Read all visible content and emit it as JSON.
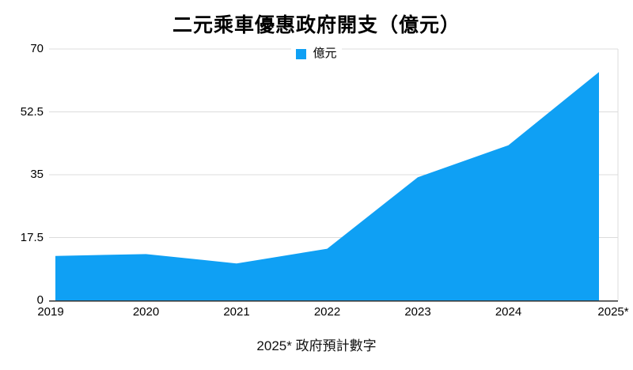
{
  "title": "二元乘車優惠政府開支（億元）",
  "legend": {
    "label": "億元",
    "color": "#0FA0F4"
  },
  "footnote": "2025* 政府預計數字",
  "colors": {
    "area_fill": "#0FA0F4",
    "gridline": "#DCDCDC",
    "axis_line": "#303030",
    "text": "#000000"
  },
  "chart_data": {
    "type": "area",
    "title": "二元乘車優惠政府開支（億元）",
    "categories": [
      "2019",
      "2020",
      "2021",
      "2022",
      "2023",
      "2024",
      "2025*"
    ],
    "series": [
      {
        "name": "億元",
        "values": [
          12.4,
          12.9,
          10.3,
          14.4,
          34.3,
          43.2,
          63.6
        ]
      }
    ],
    "xlabel": "",
    "ylabel": "",
    "ylim": [
      0,
      70
    ],
    "yticks": [
      0,
      17.5,
      35,
      52.5,
      70
    ],
    "grid": true,
    "legend_position": "top-center",
    "note": "2025* 政府預計數字"
  }
}
